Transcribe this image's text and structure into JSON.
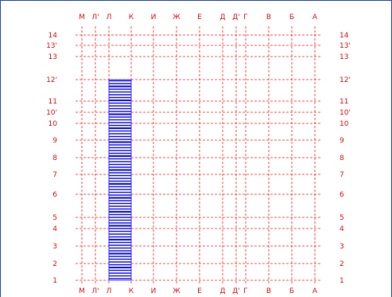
{
  "colors": {
    "grid": "#ff2a2a",
    "label": "#e01818",
    "hatch": "#1a1aff",
    "frame": "#2a4cc4"
  },
  "axis_columns": [
    {
      "label": "М"
    },
    {
      "label": "Л'"
    },
    {
      "label": "Л"
    },
    {
      "label": "К"
    },
    {
      "label": "И"
    },
    {
      "label": "Ж"
    },
    {
      "label": "Е"
    },
    {
      "label": "Д"
    },
    {
      "label": "Д'"
    },
    {
      "label": "Г"
    },
    {
      "label": "В"
    },
    {
      "label": "Б"
    },
    {
      "label": "А"
    }
  ],
  "axis_rows": [
    {
      "label": "14"
    },
    {
      "label": "13'"
    },
    {
      "label": "13"
    },
    {
      "label": "12'"
    },
    {
      "label": "11"
    },
    {
      "label": "10'"
    },
    {
      "label": "10"
    },
    {
      "label": "9"
    },
    {
      "label": "8"
    },
    {
      "label": "7"
    },
    {
      "label": "6"
    },
    {
      "label": "5"
    },
    {
      "label": "4"
    },
    {
      "label": "3"
    },
    {
      "label": "2"
    },
    {
      "label": "1"
    }
  ],
  "hatched_zone": {
    "from_column": "Л",
    "to_column": "К",
    "from_row": "1",
    "to_row": "12'",
    "pattern": "horizontal-lines"
  }
}
